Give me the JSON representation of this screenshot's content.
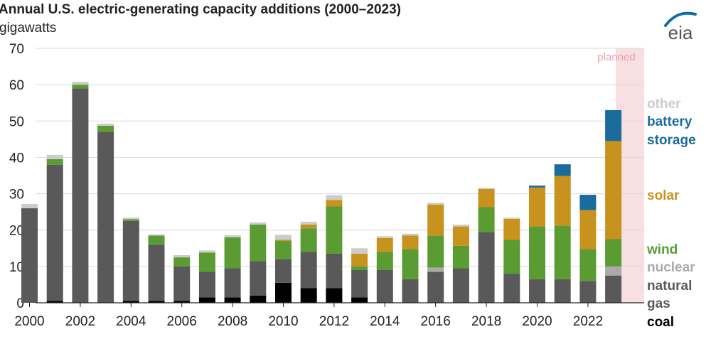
{
  "colors": {
    "coal": "#000000",
    "natural_gas": "#595959",
    "nuclear": "#aaaaaa",
    "wind": "#5a9b32",
    "solar": "#c8921e",
    "battery": "#1a6c9c",
    "other": "#cccccc",
    "planned_band": "#f8dfe1",
    "planned_text": "#e8a0a6",
    "grid": "#d9d9d9",
    "logo_blue": "#0f6ea8"
  },
  "logo": {
    "text": "eia",
    "icon": "eia-swoosh-icon"
  },
  "chart_data": {
    "type": "bar",
    "stacked": true,
    "title": "Annual U.S. electric-generating capacity additions (2000–2023)",
    "ylabel": "gigawatts",
    "xlabel": "",
    "ylim": [
      0,
      70
    ],
    "yticks": [
      "0",
      "10",
      "20",
      "30",
      "40",
      "50",
      "60",
      "70"
    ],
    "xtick_labels": [
      "2000",
      "2002",
      "2004",
      "2006",
      "2008",
      "2010",
      "2012",
      "2014",
      "2016",
      "2018",
      "2020",
      "2022"
    ],
    "grid": true,
    "planned_label": "planned",
    "planned_category": "2023",
    "categories": [
      "2000",
      "2001",
      "2002",
      "2003",
      "2004",
      "2005",
      "2006",
      "2007",
      "2008",
      "2009",
      "2010",
      "2011",
      "2012",
      "2013",
      "2014",
      "2015",
      "2016",
      "2017",
      "2018",
      "2019",
      "2020",
      "2021",
      "2022",
      "2023"
    ],
    "series": [
      {
        "name": "coal",
        "key": "coal",
        "values": [
          0,
          0.5,
          0,
          0,
          0.5,
          0.5,
          0.5,
          1.5,
          1.5,
          2,
          5.5,
          4,
          4,
          1.5,
          0,
          0,
          0,
          0,
          0,
          0,
          0,
          0,
          0,
          0
        ]
      },
      {
        "name": "natural gas",
        "key": "natural_gas",
        "values": [
          26,
          37.5,
          59,
          47,
          22,
          15.5,
          9.5,
          7,
          8,
          9.5,
          6.5,
          10,
          9.5,
          7.5,
          9,
          6.5,
          8.5,
          9.5,
          19.5,
          8,
          6.5,
          6.5,
          6,
          7.5
        ]
      },
      {
        "name": "nuclear",
        "key": "nuclear",
        "values": [
          0,
          0,
          0,
          0,
          0,
          0,
          0,
          0,
          0,
          0,
          0,
          0,
          0,
          0,
          0,
          0,
          1.2,
          0,
          0,
          0,
          0,
          0,
          0,
          2.5
        ]
      },
      {
        "name": "wind",
        "key": "wind",
        "values": [
          0,
          1.5,
          1,
          1.7,
          0.5,
          2.5,
          2.5,
          5.3,
          8.5,
          10,
          5,
          6.5,
          13,
          1,
          5,
          8.3,
          8.8,
          6.2,
          6.8,
          9.3,
          14.5,
          14.7,
          8.8,
          7.5
        ]
      },
      {
        "name": "solar",
        "key": "solar",
        "values": [
          0,
          0,
          0,
          0,
          0,
          0,
          0,
          0,
          0,
          0,
          0.3,
          1,
          1.8,
          3.5,
          3.8,
          3.7,
          8.5,
          5.3,
          5,
          5.8,
          10.7,
          13.7,
          10.7,
          27
        ]
      },
      {
        "name": "battery storage",
        "key": "battery",
        "values": [
          0,
          0,
          0,
          0,
          0,
          0,
          0,
          0,
          0,
          0,
          0,
          0,
          0,
          0,
          0,
          0,
          0,
          0,
          0,
          0,
          0.5,
          3.2,
          4.2,
          8.5
        ]
      },
      {
        "name": "other",
        "key": "other",
        "values": [
          1.2,
          1.2,
          0.8,
          0.6,
          0.4,
          0.3,
          0.6,
          0.6,
          0.6,
          0.6,
          1.4,
          0.8,
          1.3,
          1.5,
          0.5,
          0.5,
          0.5,
          0.5,
          0.3,
          0.3,
          0.2,
          0,
          0,
          0
        ]
      }
    ],
    "legend": [
      {
        "label": "other",
        "key": "other"
      },
      {
        "label": "battery",
        "key": "battery"
      },
      {
        "label": "storage",
        "key": "battery"
      },
      {
        "label": "solar",
        "key": "solar"
      },
      {
        "label": "wind",
        "key": "wind"
      },
      {
        "label": "nuclear",
        "key": "nuclear"
      },
      {
        "label": "natural",
        "key": "natural_gas"
      },
      {
        "label": "gas",
        "key": "natural_gas"
      },
      {
        "label": "coal",
        "key": "coal"
      }
    ]
  }
}
